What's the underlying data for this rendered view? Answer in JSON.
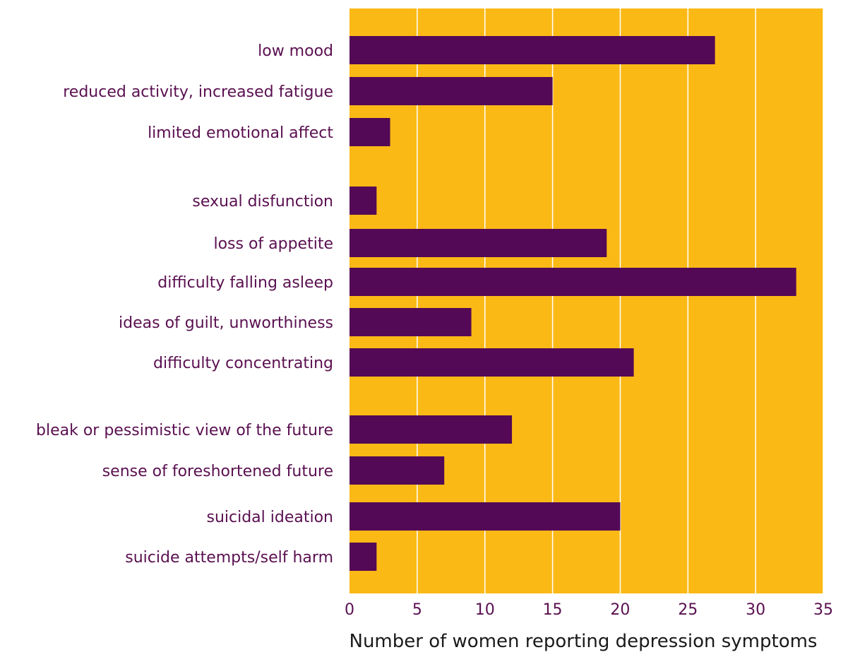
{
  "chart_data": {
    "type": "bar",
    "orientation": "horizontal",
    "title": "",
    "xlabel": "Number of women reporting depression symptoms",
    "ylabel": "",
    "xlim": [
      0,
      35
    ],
    "xticks": [
      0,
      5,
      10,
      15,
      20,
      25,
      30,
      35
    ],
    "grid": "vertical",
    "categories": [
      "low mood",
      "reduced activity, increased fatigue",
      "limited emotional affect",
      "sexual disfunction",
      "loss of appetite",
      "difficulty falling asleep",
      "ideas of guilt, unworthiness",
      "difficulty concentrating",
      "bleak or pessimistic view of the future",
      "sense of foreshortened future",
      "suicidal ideation",
      "suicide attempts/self harm"
    ],
    "values": [
      27,
      15,
      3,
      2,
      19,
      33,
      9,
      21,
      12,
      7,
      20,
      2
    ],
    "colors": {
      "background": "#fbb916",
      "bar": "#530955",
      "grid": "#ffffff",
      "label": "#5a1050"
    }
  }
}
